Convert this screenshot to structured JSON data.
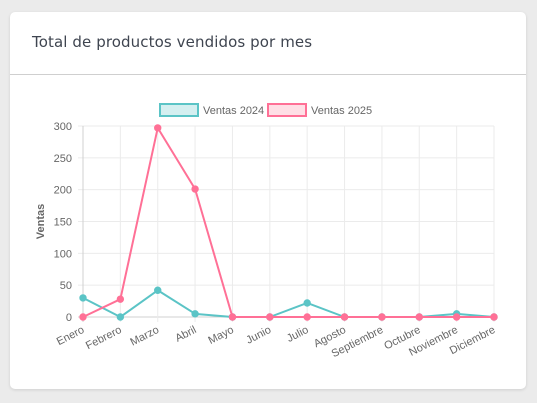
{
  "card": {
    "title": "Total de productos vendidos por mes"
  },
  "chart_data": {
    "type": "line",
    "title": "",
    "xlabel": "",
    "ylabel": "Ventas",
    "categories": [
      "Enero",
      "Febrero",
      "Marzo",
      "Abril",
      "Mayo",
      "Junio",
      "Julio",
      "Agosto",
      "Septiembre",
      "Octubre",
      "Noviembre",
      "Diciembre"
    ],
    "ylim": [
      0,
      300
    ],
    "yticks": [
      0,
      50,
      100,
      150,
      200,
      250,
      300
    ],
    "grid": true,
    "legend_position": "top",
    "series": [
      {
        "name": "Ventas 2024",
        "color": "#5bc4c6",
        "fill": "#d4eff0",
        "values": [
          30,
          0,
          42,
          5,
          0,
          0,
          22,
          0,
          0,
          0,
          5,
          0
        ]
      },
      {
        "name": "Ventas 2025",
        "color": "#ff7096",
        "fill": "#ffdfe6",
        "values": [
          0,
          28,
          297,
          201,
          0,
          0,
          0,
          0,
          0,
          0,
          0,
          0
        ]
      }
    ]
  }
}
